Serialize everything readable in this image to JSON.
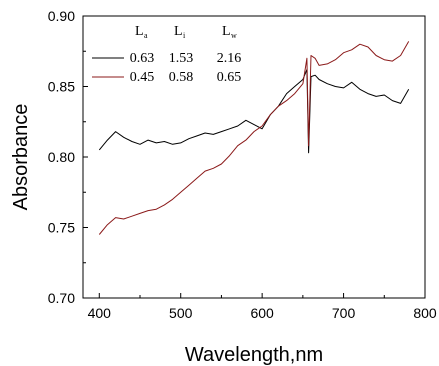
{
  "chart_data": {
    "type": "line",
    "xlabel": "Wavelength,nm",
    "ylabel": "Absorbance",
    "xlim": [
      380,
      800
    ],
    "ylim": [
      0.7,
      0.9
    ],
    "x_ticks": [
      "400",
      "500",
      "600",
      "700",
      "800"
    ],
    "y_ticks": [
      "0.70",
      "0.75",
      "0.80",
      "0.85",
      "0.90"
    ],
    "grid": false,
    "legend": {
      "placement": "top-left",
      "headers": [
        "L",
        "L",
        "L"
      ],
      "header_subscripts": [
        "a",
        "i",
        "w"
      ]
    },
    "series": [
      {
        "color": "#000000",
        "legend_values": [
          "0.63",
          "1.53",
          "2.16"
        ],
        "x": [
          400,
          410,
          420,
          430,
          440,
          450,
          460,
          470,
          480,
          490,
          500,
          510,
          520,
          530,
          540,
          550,
          560,
          570,
          580,
          590,
          600,
          610,
          620,
          630,
          640,
          650,
          655,
          657,
          660,
          665,
          670,
          680,
          690,
          700,
          710,
          720,
          730,
          740,
          750,
          760,
          770,
          780
        ],
        "y": [
          0.805,
          0.812,
          0.818,
          0.814,
          0.811,
          0.809,
          0.812,
          0.81,
          0.811,
          0.809,
          0.81,
          0.813,
          0.815,
          0.817,
          0.816,
          0.818,
          0.82,
          0.822,
          0.826,
          0.823,
          0.82,
          0.83,
          0.836,
          0.845,
          0.85,
          0.855,
          0.862,
          0.803,
          0.857,
          0.858,
          0.855,
          0.852,
          0.85,
          0.849,
          0.853,
          0.848,
          0.845,
          0.843,
          0.844,
          0.84,
          0.838,
          0.848
        ]
      },
      {
        "color": "#8b1a1a",
        "legend_values": [
          "0.45",
          "0.58",
          "0.65"
        ],
        "x": [
          400,
          410,
          420,
          430,
          440,
          450,
          460,
          470,
          480,
          490,
          500,
          510,
          520,
          530,
          540,
          550,
          560,
          570,
          580,
          590,
          600,
          610,
          620,
          630,
          640,
          650,
          655,
          657,
          660,
          665,
          670,
          680,
          690,
          700,
          710,
          720,
          730,
          740,
          750,
          760,
          770,
          780
        ],
        "y": [
          0.745,
          0.752,
          0.757,
          0.756,
          0.758,
          0.76,
          0.762,
          0.763,
          0.766,
          0.77,
          0.775,
          0.78,
          0.785,
          0.79,
          0.792,
          0.795,
          0.801,
          0.808,
          0.812,
          0.818,
          0.822,
          0.83,
          0.836,
          0.84,
          0.845,
          0.852,
          0.87,
          0.808,
          0.872,
          0.87,
          0.865,
          0.866,
          0.869,
          0.874,
          0.876,
          0.88,
          0.878,
          0.872,
          0.869,
          0.868,
          0.872,
          0.882
        ]
      }
    ]
  }
}
